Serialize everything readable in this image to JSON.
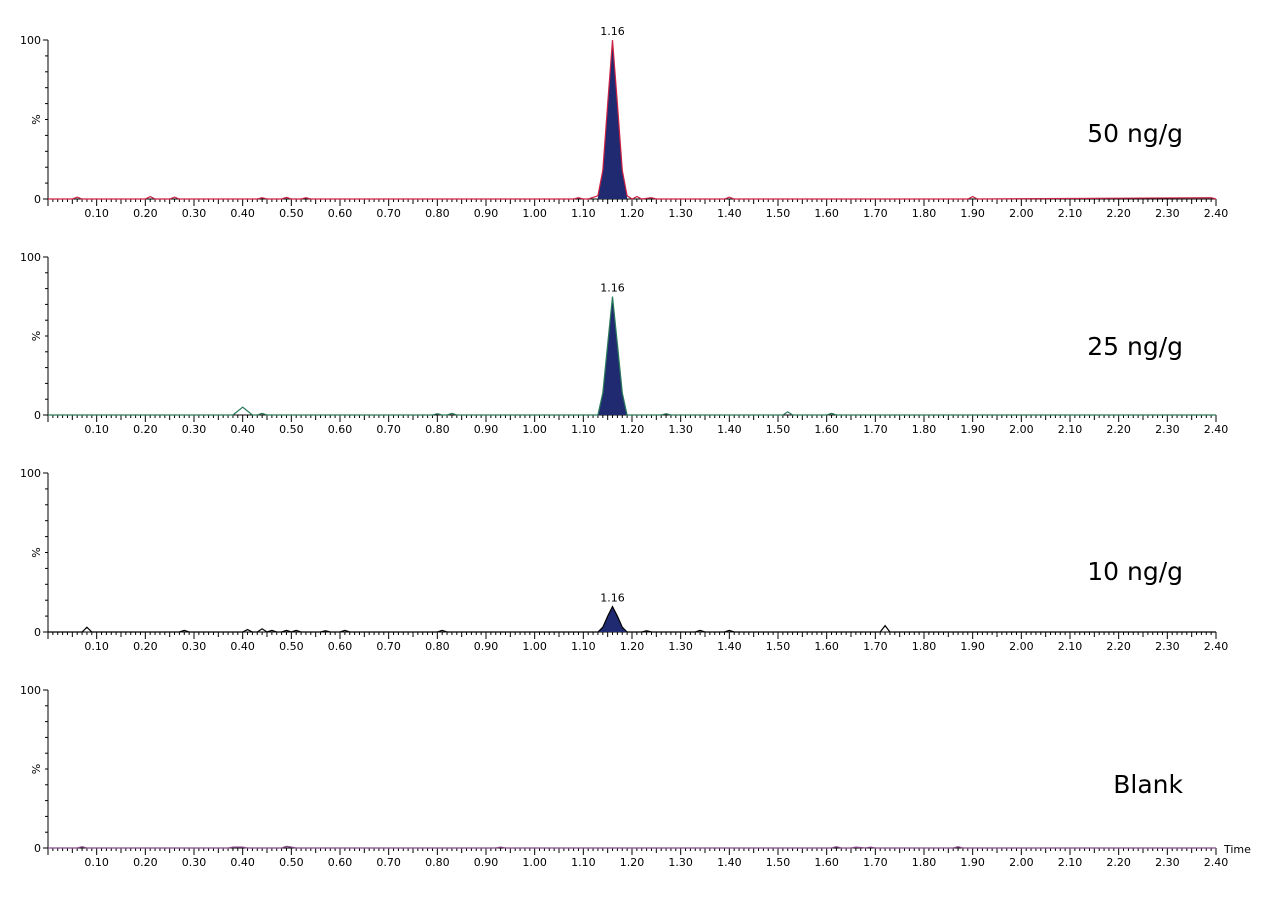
{
  "chart_data": [
    {
      "type": "line",
      "label": "50 ng/g",
      "ylabel": "%",
      "ylim": [
        0,
        100
      ],
      "xlim": [
        0.0,
        2.4
      ],
      "y_ticks": [
        "0",
        "100"
      ],
      "x_ticks": [
        "0.10",
        "0.20",
        "0.30",
        "0.40",
        "0.50",
        "0.60",
        "0.70",
        "0.80",
        "0.90",
        "1.00",
        "1.10",
        "1.20",
        "1.30",
        "1.40",
        "1.50",
        "1.60",
        "1.70",
        "1.80",
        "1.90",
        "2.00",
        "2.10",
        "2.20",
        "2.30",
        "2.40"
      ],
      "peak": {
        "label": "1.16",
        "x": 1.16,
        "y": 100
      },
      "line_color": "#cc2244",
      "fill_color": "#1f2a70",
      "series": [
        {
          "x": [
            0.0,
            0.05,
            0.06,
            0.07,
            0.08,
            0.2,
            0.21,
            0.22,
            0.25,
            0.26,
            0.27,
            0.43,
            0.44,
            0.45,
            0.48,
            0.49,
            0.5,
            0.52,
            0.53,
            0.54,
            1.08,
            1.09,
            1.1,
            1.11,
            1.13,
            1.14,
            1.15,
            1.16,
            1.17,
            1.18,
            1.19,
            1.2,
            1.21,
            1.22,
            1.24,
            1.25,
            1.39,
            1.4,
            1.41,
            1.89,
            1.9,
            1.91,
            2.39,
            2.4
          ],
          "y": [
            0,
            0,
            1.2,
            0,
            0,
            0,
            1.5,
            0,
            0,
            1.2,
            0,
            0,
            0.8,
            0,
            0,
            1,
            0,
            0,
            0.8,
            0,
            0,
            0.8,
            0,
            0,
            2,
            18,
            60,
            100,
            60,
            18,
            2,
            0,
            1.5,
            0,
            0.8,
            0,
            0,
            1.2,
            0,
            0,
            1.5,
            0,
            0.8,
            0
          ]
        }
      ]
    },
    {
      "type": "line",
      "label": "25 ng/g",
      "ylabel": "%",
      "ylim": [
        0,
        100
      ],
      "xlim": [
        0.0,
        2.4
      ],
      "y_ticks": [
        "0",
        "100"
      ],
      "x_ticks": [
        "0.10",
        "0.20",
        "0.30",
        "0.40",
        "0.50",
        "0.60",
        "0.70",
        "0.80",
        "0.90",
        "1.00",
        "1.10",
        "1.20",
        "1.30",
        "1.40",
        "1.50",
        "1.60",
        "1.70",
        "1.80",
        "1.90",
        "2.00",
        "2.10",
        "2.20",
        "2.30",
        "2.40"
      ],
      "peak": {
        "label": "1.16",
        "x": 1.16,
        "y": 75
      },
      "line_color": "#2a7a5a",
      "fill_color": "#1f2a70",
      "series": [
        {
          "x": [
            0.0,
            0.38,
            0.4,
            0.42,
            0.43,
            0.44,
            0.45,
            0.79,
            0.8,
            0.81,
            0.82,
            0.83,
            0.84,
            1.13,
            1.14,
            1.15,
            1.16,
            1.17,
            1.18,
            1.19,
            1.26,
            1.27,
            1.28,
            1.51,
            1.52,
            1.53,
            1.6,
            1.61,
            1.62,
            2.4
          ],
          "y": [
            0,
            0,
            5,
            0,
            0,
            1,
            0,
            0,
            0.8,
            0,
            0,
            1,
            0,
            0,
            14,
            45,
            75,
            45,
            14,
            0,
            0,
            0.8,
            0,
            0,
            2,
            0,
            0,
            1,
            0,
            0
          ]
        }
      ]
    },
    {
      "type": "line",
      "label": "10 ng/g",
      "ylabel": "%",
      "ylim": [
        0,
        100
      ],
      "xlim": [
        0.0,
        2.4
      ],
      "y_ticks": [
        "0",
        "100"
      ],
      "x_ticks": [
        "0.10",
        "0.20",
        "0.30",
        "0.40",
        "0.50",
        "0.60",
        "0.70",
        "0.80",
        "0.90",
        "1.00",
        "1.10",
        "1.20",
        "1.30",
        "1.40",
        "1.50",
        "1.60",
        "1.70",
        "1.80",
        "1.90",
        "2.00",
        "2.10",
        "2.20",
        "2.30",
        "2.40"
      ],
      "peak": {
        "label": "1.16",
        "x": 1.16,
        "y": 16
      },
      "line_color": "#000000",
      "fill_color": "#1f2a70",
      "series": [
        {
          "x": [
            0.0,
            0.07,
            0.08,
            0.09,
            0.27,
            0.28,
            0.29,
            0.4,
            0.41,
            0.42,
            0.43,
            0.44,
            0.45,
            0.46,
            0.47,
            0.48,
            0.49,
            0.5,
            0.51,
            0.52,
            0.56,
            0.57,
            0.58,
            0.6,
            0.61,
            0.62,
            0.8,
            0.81,
            0.82,
            1.13,
            1.14,
            1.15,
            1.16,
            1.17,
            1.18,
            1.19,
            1.22,
            1.23,
            1.24,
            1.33,
            1.34,
            1.35,
            1.39,
            1.4,
            1.41,
            1.71,
            1.72,
            1.73,
            2.4
          ],
          "y": [
            0,
            0,
            3,
            0,
            0,
            1,
            0,
            0,
            1.5,
            0,
            0,
            2,
            0,
            1,
            0,
            0,
            1,
            0,
            1,
            0,
            0,
            0.8,
            0,
            0,
            1,
            0,
            0,
            1,
            0,
            0,
            3,
            10,
            16,
            10,
            3,
            0,
            0,
            0.8,
            0,
            0,
            1,
            0,
            0,
            1,
            0,
            0,
            4,
            0,
            0
          ]
        }
      ]
    },
    {
      "type": "line",
      "label": "Blank",
      "ylabel": "%",
      "ylim": [
        0,
        100
      ],
      "xlim": [
        0.0,
        2.4
      ],
      "y_ticks": [
        "0",
        "100"
      ],
      "x_ticks": [
        "0.10",
        "0.20",
        "0.30",
        "0.40",
        "0.50",
        "0.60",
        "0.70",
        "0.80",
        "0.90",
        "1.00",
        "1.10",
        "1.20",
        "1.30",
        "1.40",
        "1.50",
        "1.60",
        "1.70",
        "1.80",
        "1.90",
        "2.00",
        "2.10",
        "2.20",
        "2.30",
        "2.40"
      ],
      "x_axis_label": "Time",
      "line_color": "#8a4a8a",
      "series": [
        {
          "x": [
            0.0,
            0.06,
            0.07,
            0.08,
            0.37,
            0.38,
            0.39,
            0.4,
            0.41,
            0.48,
            0.49,
            0.5,
            0.51,
            0.92,
            0.93,
            0.94,
            1.61,
            1.62,
            1.63,
            1.65,
            1.66,
            1.68,
            1.69,
            1.7,
            1.86,
            1.87,
            1.88,
            2.4
          ],
          "y": [
            0,
            0,
            0.8,
            0,
            0,
            0.6,
            0.6,
            0.6,
            0,
            0,
            1,
            0.6,
            0,
            0,
            0.6,
            0,
            0,
            0.8,
            0,
            0,
            0.6,
            0,
            0.6,
            0,
            0,
            0.8,
            0,
            0
          ]
        }
      ]
    }
  ]
}
